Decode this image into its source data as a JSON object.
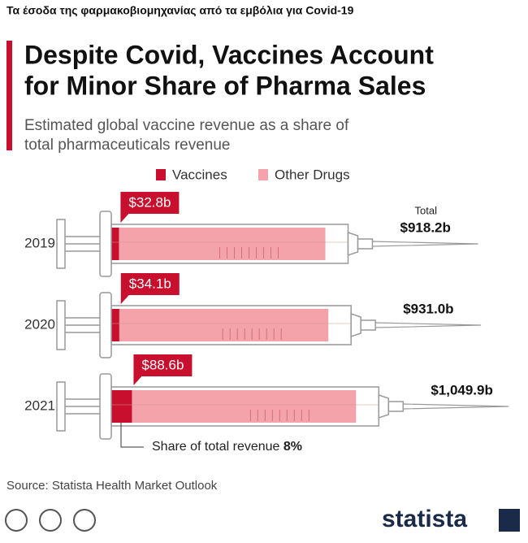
{
  "header": "Τα έσοδα της φαρμακοβιομηχανίας από τα εμβόλια για Covid-19",
  "chart_data": {
    "type": "bar",
    "orientation": "horizontal",
    "title": [
      "Despite Covid, Vaccines Account",
      "for Minor Share of Pharma Sales"
    ],
    "subtitle": [
      "Estimated global vaccine revenue as a share of",
      "total pharmaceuticals revenue"
    ],
    "categories": [
      "2019",
      "2020",
      "2021"
    ],
    "series": [
      {
        "name": "Vaccines",
        "color": "#c8102e",
        "values": [
          32.8,
          34.1,
          88.6
        ],
        "value_labels": [
          "$32.8b",
          "$34.1b",
          "$88.6b"
        ]
      },
      {
        "name": "Other Drugs",
        "color": "#f4a3ab"
      }
    ],
    "totals": {
      "name": "Total",
      "values": [
        918.2,
        931.0,
        1049.9
      ],
      "value_labels": [
        "$918.2b",
        "$931.0b",
        "$1,049.9b"
      ]
    },
    "annotation": {
      "text": "Share of total revenue",
      "value": 8,
      "label": "8%"
    },
    "source": "Source: Statista Health Market Outlook"
  },
  "logo": "statista"
}
